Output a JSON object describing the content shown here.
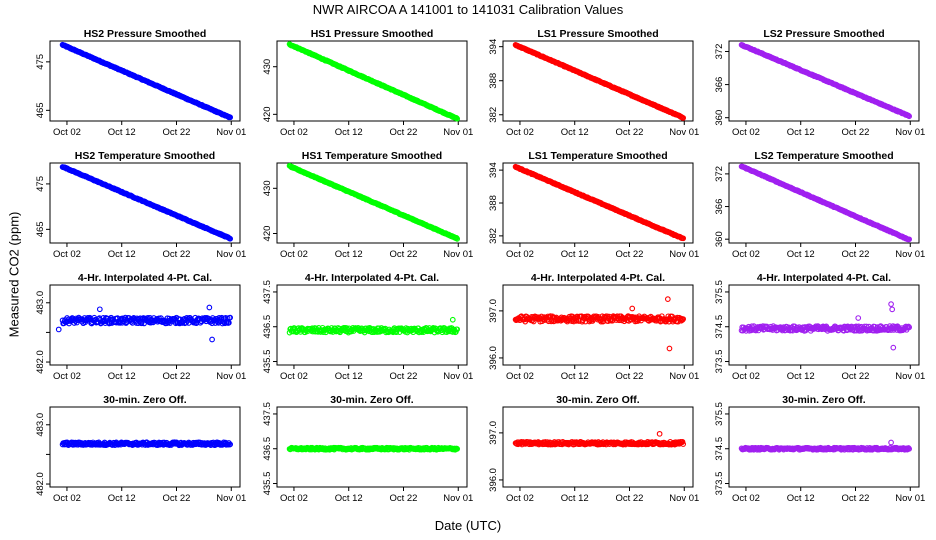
{
  "title": "NWR   AIRCOA A   141001 to 141031   Calibration Values",
  "xlabel": "Date (UTC)",
  "ylabel": "Measured CO2 (ppm)",
  "colors": {
    "HS2": "#0000ff",
    "HS1": "#00ff00",
    "LS1": "#ff0000",
    "LS2": "#a020f0"
  },
  "x_ticks": [
    {
      "label": "Oct 02",
      "day": 2
    },
    {
      "label": "Oct 12",
      "day": 12
    },
    {
      "label": "Oct 22",
      "day": 22
    },
    {
      "label": "Nov 01",
      "day": 32
    }
  ],
  "chart_data": [
    {
      "type": "scatter",
      "title": "HS2 Pressure Smoothed",
      "row": 0,
      "col": 0,
      "series": "HS2",
      "shape": "trend",
      "start": 478.5,
      "end": 463.5,
      "ylim": [
        462.8,
        479.3
      ],
      "yticks": [
        465,
        475
      ]
    },
    {
      "type": "scatter",
      "title": "HS1 Pressure Smoothed",
      "row": 0,
      "col": 1,
      "series": "HS1",
      "shape": "trend",
      "start": 434.7,
      "end": 419.1,
      "ylim": [
        418.6,
        435.4
      ],
      "yticks": [
        420,
        430
      ]
    },
    {
      "type": "scatter",
      "title": "LS1 Pressure Smoothed",
      "row": 0,
      "col": 2,
      "series": "LS1",
      "shape": "trend",
      "start": 394.3,
      "end": 381.5,
      "ylim": [
        380.9,
        395.0
      ],
      "yticks": [
        382,
        388,
        394
      ]
    },
    {
      "type": "scatter",
      "title": "LS2 Pressure Smoothed",
      "row": 0,
      "col": 3,
      "series": "LS2",
      "shape": "trend",
      "start": 373.2,
      "end": 360.3,
      "ylim": [
        359.4,
        373.9
      ],
      "yticks": [
        360,
        366,
        372
      ]
    },
    {
      "type": "scatter",
      "title": "HS2 Temperature Smoothed",
      "row": 1,
      "col": 0,
      "series": "HS2",
      "shape": "trend",
      "start": 478.8,
      "end": 463.0,
      "ylim": [
        462.0,
        479.6
      ],
      "yticks": [
        465,
        475
      ]
    },
    {
      "type": "scatter",
      "title": "HS1 Temperature Smoothed",
      "row": 1,
      "col": 1,
      "series": "HS1",
      "shape": "trend",
      "start": 434.9,
      "end": 418.9,
      "ylim": [
        417.9,
        435.6
      ],
      "yticks": [
        420,
        430
      ]
    },
    {
      "type": "scatter",
      "title": "LS1 Temperature Smoothed",
      "row": 1,
      "col": 2,
      "series": "LS1",
      "shape": "trend",
      "start": 394.6,
      "end": 381.5,
      "ylim": [
        380.7,
        395.3
      ],
      "yticks": [
        382,
        388,
        394
      ]
    },
    {
      "type": "scatter",
      "title": "LS2 Temperature Smoothed",
      "row": 1,
      "col": 3,
      "series": "LS2",
      "shape": "trend",
      "start": 373.4,
      "end": 359.9,
      "ylim": [
        359.3,
        374.0
      ],
      "yticks": [
        360,
        366,
        372
      ]
    },
    {
      "type": "scatter",
      "title": "4-Hr. Interpolated 4-Pt. Cal.",
      "row": 2,
      "col": 0,
      "series": "HS2",
      "shape": "flat",
      "level": 482.7,
      "noise": 0.05,
      "outliers": [
        [
          8,
          482.89
        ],
        [
          28,
          482.92
        ],
        [
          28.5,
          482.38
        ],
        [
          0.5,
          482.55
        ]
      ],
      "ylim": [
        481.95,
        483.3
      ],
      "yticks": [
        482.0,
        482.5,
        483.0
      ],
      "ytick_labels": [
        "482.0",
        "",
        "483.0"
      ]
    },
    {
      "type": "scatter",
      "title": "4-Hr. Interpolated 4-Pt. Cal.",
      "row": 2,
      "col": 1,
      "series": "HS1",
      "shape": "flat",
      "level": 436.4,
      "noise": 0.07,
      "outliers": [
        [
          31,
          436.7
        ]
      ],
      "ylim": [
        435.4,
        437.7
      ],
      "yticks": [
        435.5,
        436.5,
        437.5
      ]
    },
    {
      "type": "scatter",
      "title": "4-Hr. Interpolated 4-Pt. Cal.",
      "row": 2,
      "col": 2,
      "series": "LS1",
      "shape": "flat",
      "level": 396.83,
      "noise": 0.06,
      "outliers": [
        [
          29,
          397.25
        ],
        [
          29.3,
          396.2
        ],
        [
          22.5,
          397.05
        ]
      ],
      "ylim": [
        395.85,
        397.55
      ],
      "yticks": [
        396.0,
        397.0
      ],
      "ytick_labels": [
        "396.0",
        "397.0"
      ]
    },
    {
      "type": "scatter",
      "title": "4-Hr. Interpolated 4-Pt. Cal.",
      "row": 2,
      "col": 3,
      "series": "LS2",
      "shape": "flat",
      "level": 374.45,
      "noise": 0.07,
      "outliers": [
        [
          28.5,
          375.15
        ],
        [
          28.7,
          375.0
        ],
        [
          28.9,
          373.9
        ],
        [
          22.5,
          374.75
        ]
      ],
      "ylim": [
        373.4,
        375.7
      ],
      "yticks": [
        373.5,
        374.5,
        375.5
      ]
    },
    {
      "type": "scatter",
      "title": "30-min. Zero Off.",
      "row": 3,
      "col": 0,
      "series": "HS2",
      "shape": "flat",
      "level": 482.68,
      "noise": 0.025,
      "outliers": [],
      "ylim": [
        481.95,
        483.3
      ],
      "yticks": [
        482.0,
        482.5,
        483.0
      ],
      "ytick_labels": [
        "482.0",
        "",
        "483.0"
      ]
    },
    {
      "type": "scatter",
      "title": "30-min. Zero Off.",
      "row": 3,
      "col": 1,
      "series": "HS1",
      "shape": "flat",
      "level": 436.5,
      "noise": 0.03,
      "outliers": [],
      "ylim": [
        435.4,
        437.7
      ],
      "yticks": [
        435.5,
        436.5,
        437.5
      ]
    },
    {
      "type": "scatter",
      "title": "30-min. Zero Off.",
      "row": 3,
      "col": 2,
      "series": "LS1",
      "shape": "flat",
      "level": 396.78,
      "noise": 0.03,
      "outliers": [
        [
          27.5,
          396.98
        ]
      ],
      "ylim": [
        395.85,
        397.55
      ],
      "yticks": [
        396.0,
        397.0
      ],
      "ytick_labels": [
        "396.0",
        "397.0"
      ]
    },
    {
      "type": "scatter",
      "title": "30-min. Zero Off.",
      "row": 3,
      "col": 3,
      "series": "LS2",
      "shape": "flat",
      "level": 374.5,
      "noise": 0.03,
      "outliers": [
        [
          28.5,
          374.68
        ]
      ],
      "ylim": [
        373.4,
        375.7
      ],
      "yticks": [
        373.5,
        374.5,
        375.5
      ]
    }
  ]
}
